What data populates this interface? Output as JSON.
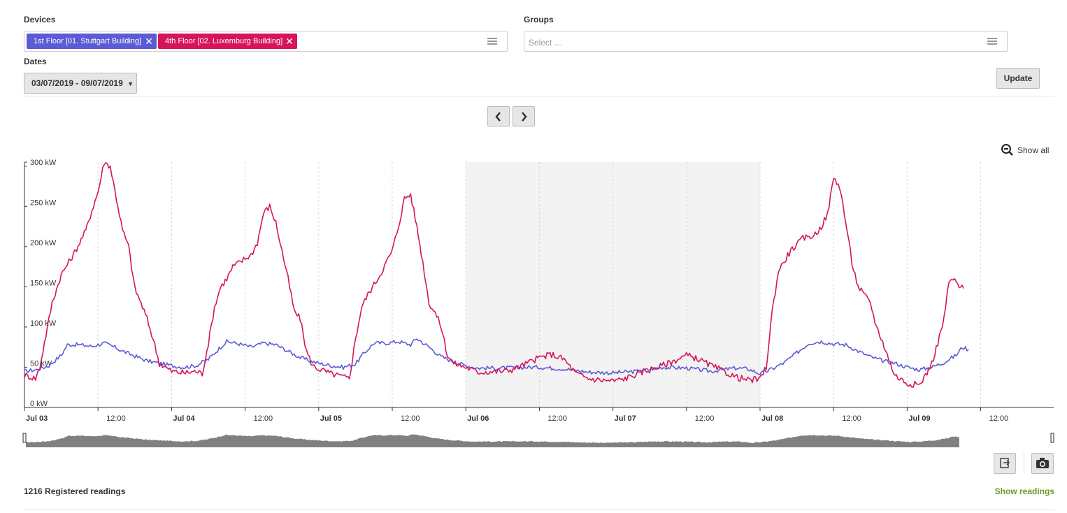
{
  "filters": {
    "devices_label": "Devices",
    "groups_label": "Groups",
    "dates_label": "Dates",
    "device_tags": [
      {
        "label": "1st Floor [01. Stuttgart Building]",
        "color": "#5b5bd6"
      },
      {
        "label": "4th Floor [02. Luxemburg Building]",
        "color": "#d6145c"
      }
    ],
    "groups_placeholder": "Select ...",
    "date_range": "03/07/2019 - 09/07/2019",
    "update_label": "Update"
  },
  "toolbar": {
    "prev_icon": "chevron-left-icon",
    "next_icon": "chevron-right-icon",
    "show_all_label": "Show all"
  },
  "chart_data": {
    "type": "line",
    "title": "",
    "xlabel": "",
    "ylabel": "",
    "y_unit": "kW",
    "ylim": [
      0,
      305
    ],
    "yticks": [
      0,
      50,
      100,
      150,
      200,
      250,
      300
    ],
    "ytick_labels": [
      "0 kW",
      "50 kW",
      "100 kW",
      "150 kW",
      "200 kW",
      "250 kW",
      "300 kW"
    ],
    "x_range_hours": [
      0,
      168
    ],
    "xticks": [
      {
        "h": 0,
        "label": "Jul 03",
        "bold": true
      },
      {
        "h": 12,
        "label": "12:00",
        "bold": false
      },
      {
        "h": 24,
        "label": "Jul 04",
        "bold": true
      },
      {
        "h": 36,
        "label": "12:00",
        "bold": false
      },
      {
        "h": 48,
        "label": "Jul 05",
        "bold": true
      },
      {
        "h": 60,
        "label": "12:00",
        "bold": false
      },
      {
        "h": 72,
        "label": "Jul 06",
        "bold": true
      },
      {
        "h": 84,
        "label": "12:00",
        "bold": false
      },
      {
        "h": 96,
        "label": "Jul 07",
        "bold": true
      },
      {
        "h": 108,
        "label": "12:00",
        "bold": false
      },
      {
        "h": 120,
        "label": "Jul 08",
        "bold": true
      },
      {
        "h": 132,
        "label": "12:00",
        "bold": false
      },
      {
        "h": 144,
        "label": "Jul 09",
        "bold": true
      },
      {
        "h": 156,
        "label": "12:00",
        "bold": false
      }
    ],
    "weekend_band_hours": [
      72,
      120
    ],
    "weekend_color": "#f3f3f3",
    "navigator_color": "#808080",
    "series": [
      {
        "name": "1st Floor [01. Stuttgart Building]",
        "color": "#5b5bd6",
        "points": [
          [
            0,
            45
          ],
          [
            2,
            47
          ],
          [
            4,
            52
          ],
          [
            6,
            65
          ],
          [
            7,
            78
          ],
          [
            9,
            78
          ],
          [
            11,
            76
          ],
          [
            13,
            80
          ],
          [
            15,
            74
          ],
          [
            16,
            70
          ],
          [
            18,
            64
          ],
          [
            20,
            58
          ],
          [
            22,
            55
          ],
          [
            24,
            52
          ],
          [
            26,
            50
          ],
          [
            28,
            52
          ],
          [
            30,
            60
          ],
          [
            32,
            75
          ],
          [
            33,
            82
          ],
          [
            35,
            79
          ],
          [
            37,
            75
          ],
          [
            39,
            80
          ],
          [
            41,
            78
          ],
          [
            43,
            70
          ],
          [
            45,
            62
          ],
          [
            47,
            57
          ],
          [
            48,
            55
          ],
          [
            50,
            52
          ],
          [
            52,
            50
          ],
          [
            54,
            54
          ],
          [
            55,
            64
          ],
          [
            57,
            80
          ],
          [
            59,
            80
          ],
          [
            61,
            82
          ],
          [
            63,
            78
          ],
          [
            64,
            86
          ],
          [
            66,
            75
          ],
          [
            68,
            63
          ],
          [
            70,
            57
          ],
          [
            72,
            52
          ],
          [
            74,
            49
          ],
          [
            78,
            49
          ],
          [
            82,
            50
          ],
          [
            84,
            50
          ],
          [
            88,
            48
          ],
          [
            90,
            46
          ],
          [
            92,
            44
          ],
          [
            96,
            43
          ],
          [
            100,
            45
          ],
          [
            104,
            50
          ],
          [
            108,
            49
          ],
          [
            112,
            45
          ],
          [
            116,
            49
          ],
          [
            118,
            48
          ],
          [
            120,
            42
          ],
          [
            122,
            48
          ],
          [
            124,
            56
          ],
          [
            126,
            68
          ],
          [
            128,
            80
          ],
          [
            130,
            82
          ],
          [
            132,
            79
          ],
          [
            134,
            78
          ],
          [
            136,
            70
          ],
          [
            138,
            63
          ],
          [
            140,
            58
          ],
          [
            142,
            55
          ],
          [
            144,
            50
          ],
          [
            146,
            47
          ],
          [
            148,
            50
          ],
          [
            150,
            56
          ],
          [
            152,
            65
          ],
          [
            153,
            75
          ],
          [
            154,
            72
          ]
        ]
      },
      {
        "name": "4th Floor [02. Luxemburg Building]",
        "color": "#d6145c",
        "points": [
          [
            0,
            40
          ],
          [
            1,
            38
          ],
          [
            1.8,
            36
          ],
          [
            2.5,
            50
          ],
          [
            3.5,
            90
          ],
          [
            4.5,
            130
          ],
          [
            6,
            165
          ],
          [
            7,
            178
          ],
          [
            8,
            190
          ],
          [
            9,
            205
          ],
          [
            10,
            220
          ],
          [
            11,
            245
          ],
          [
            12,
            268
          ],
          [
            13,
            305
          ],
          [
            14,
            300
          ],
          [
            15,
            260
          ],
          [
            16,
            220
          ],
          [
            17,
            200
          ],
          [
            18,
            148
          ],
          [
            19,
            130
          ],
          [
            20,
            110
          ],
          [
            21,
            85
          ],
          [
            22,
            55
          ],
          [
            24,
            45
          ],
          [
            26,
            43
          ],
          [
            28,
            45
          ],
          [
            29,
            42
          ],
          [
            30,
            80
          ],
          [
            31,
            125
          ],
          [
            32,
            150
          ],
          [
            33,
            160
          ],
          [
            34,
            175
          ],
          [
            36,
            185
          ],
          [
            37,
            190
          ],
          [
            38,
            205
          ],
          [
            39,
            242
          ],
          [
            40,
            250
          ],
          [
            41,
            230
          ],
          [
            42,
            195
          ],
          [
            43,
            160
          ],
          [
            44,
            120
          ],
          [
            45,
            110
          ],
          [
            46,
            70
          ],
          [
            47,
            52
          ],
          [
            48,
            48
          ],
          [
            50,
            42
          ],
          [
            52,
            38
          ],
          [
            53,
            36
          ],
          [
            54,
            85
          ],
          [
            55,
            125
          ],
          [
            56,
            140
          ],
          [
            58,
            165
          ],
          [
            60,
            195
          ],
          [
            61,
            225
          ],
          [
            62,
            260
          ],
          [
            63,
            265
          ],
          [
            64,
            225
          ],
          [
            65,
            180
          ],
          [
            66,
            130
          ],
          [
            67,
            118
          ],
          [
            68,
            100
          ],
          [
            69,
            65
          ],
          [
            70,
            55
          ],
          [
            72,
            50
          ],
          [
            74,
            44
          ],
          [
            78,
            45
          ],
          [
            80,
            48
          ],
          [
            82,
            55
          ],
          [
            84,
            62
          ],
          [
            86,
            66
          ],
          [
            88,
            60
          ],
          [
            90,
            42
          ],
          [
            92,
            36
          ],
          [
            94,
            34
          ],
          [
            96,
            33
          ],
          [
            98,
            36
          ],
          [
            100,
            42
          ],
          [
            104,
            52
          ],
          [
            106,
            58
          ],
          [
            108,
            65
          ],
          [
            110,
            60
          ],
          [
            112,
            52
          ],
          [
            114,
            45
          ],
          [
            116,
            38
          ],
          [
            118,
            34
          ],
          [
            120,
            35
          ],
          [
            121,
            50
          ],
          [
            122,
            120
          ],
          [
            123,
            170
          ],
          [
            125,
            195
          ],
          [
            127,
            210
          ],
          [
            129,
            215
          ],
          [
            130,
            225
          ],
          [
            131,
            240
          ],
          [
            132,
            285
          ],
          [
            133,
            275
          ],
          [
            134,
            230
          ],
          [
            135,
            180
          ],
          [
            136,
            150
          ],
          [
            137,
            140
          ],
          [
            138,
            130
          ],
          [
            139,
            100
          ],
          [
            140,
            82
          ],
          [
            141,
            60
          ],
          [
            142,
            40
          ],
          [
            143,
            35
          ],
          [
            144,
            30
          ],
          [
            146,
            28
          ],
          [
            147,
            40
          ],
          [
            148,
            55
          ],
          [
            149,
            80
          ],
          [
            150,
            110
          ],
          [
            150.8,
            155
          ],
          [
            151.5,
            160
          ],
          [
            152.5,
            150
          ],
          [
            153.2,
            148
          ]
        ]
      }
    ]
  },
  "footer": {
    "readings_count": "1216",
    "readings_text": "Registered readings",
    "show_readings_label": "Show readings",
    "show_readings_color": "#6a9a2a",
    "export_icon": "export-icon",
    "camera_icon": "camera-icon"
  }
}
